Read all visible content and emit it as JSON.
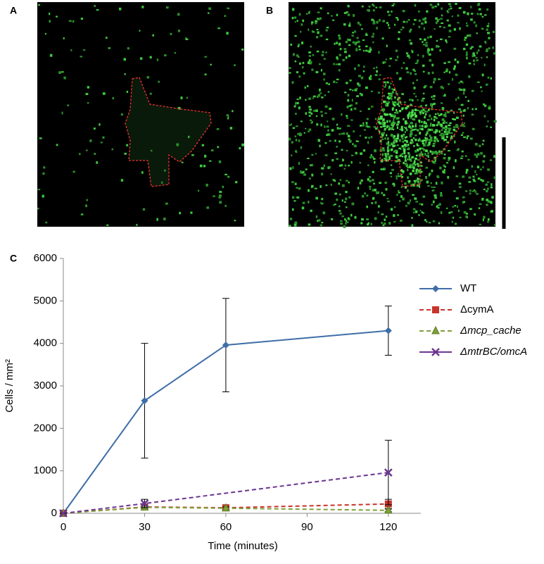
{
  "panels": {
    "labels": [
      "A",
      "B"
    ]
  },
  "chart_data": {
    "type": "line",
    "panel_label": "C",
    "xlabel": "Time (minutes)",
    "ylabel": "Cells / mm²",
    "xlim": [
      0,
      132
    ],
    "xticks": [
      0,
      30,
      60,
      90,
      120
    ],
    "ylim": [
      0,
      6000
    ],
    "yticks": [
      0,
      1000,
      2000,
      3000,
      4000,
      5000,
      6000
    ],
    "grid": false,
    "legend": "upper right",
    "series": [
      {
        "name": "WT",
        "color": "#3e6ea8",
        "marker": "diamond",
        "dashed": false,
        "italic": false,
        "x": [
          0,
          30,
          60,
          120
        ],
        "values": [
          0,
          2650,
          3960,
          4300
        ],
        "errors": [
          0,
          1350,
          1100,
          580
        ]
      },
      {
        "name": "ΔcymA",
        "color": "#c8342c",
        "marker": "square",
        "dashed": true,
        "italic": false,
        "x": [
          0,
          30,
          60,
          120
        ],
        "values": [
          0,
          150,
          130,
          220
        ],
        "errors": [
          0,
          60,
          30,
          110
        ]
      },
      {
        "name": "Δmcp_cache",
        "color": "#7fa03a",
        "marker": "triangle",
        "dashed": true,
        "italic": true,
        "x": [
          0,
          30,
          60,
          120
        ],
        "values": [
          0,
          140,
          120,
          70
        ],
        "errors": [
          0,
          40,
          30,
          30
        ]
      },
      {
        "name": "ΔmtrBC/omcA",
        "color": "#6b3590",
        "marker": "cross",
        "dashed": true,
        "italic": true,
        "x": [
          0,
          30,
          120
        ],
        "values": [
          0,
          230,
          960
        ],
        "errors": [
          0,
          100,
          760
        ]
      }
    ]
  }
}
